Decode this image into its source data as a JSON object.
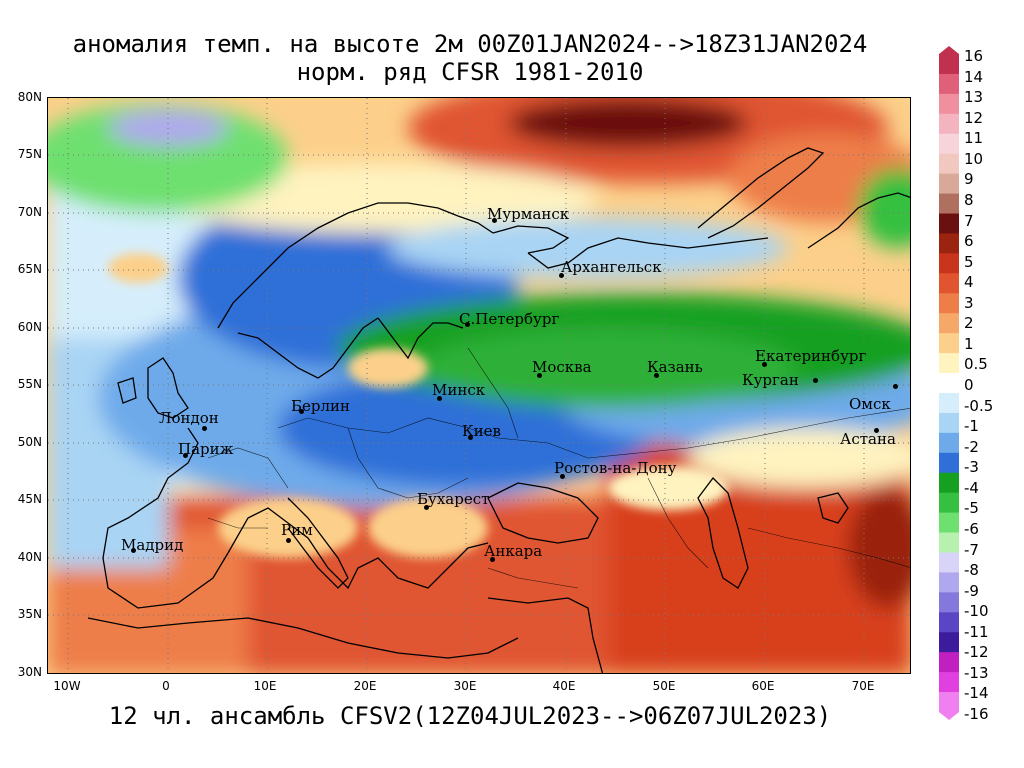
{
  "title_line1": "аномалия темп. на высоте 2м 00Z01JAN2024-->18Z31JAN2024",
  "title_line2": "норм. ряд CFSR 1981-2010",
  "footer": "12 чл. ансамбль CFSV2(12Z04JUL2023-->06Z07JUL2023)",
  "lat_labels": [
    "80N",
    "75N",
    "70N",
    "65N",
    "60N",
    "55N",
    "50N",
    "45N",
    "40N",
    "35N",
    "30N"
  ],
  "lon_labels": [
    "10W",
    "0",
    "10E",
    "20E",
    "30E",
    "40E",
    "50E",
    "60E",
    "70E"
  ],
  "cities": [
    {
      "name": "Мурманск"
    },
    {
      "name": "Архангельск"
    },
    {
      "name": "С.Петербург"
    },
    {
      "name": "Москва"
    },
    {
      "name": "Казань"
    },
    {
      "name": "Екатеринбург"
    },
    {
      "name": "Курган"
    },
    {
      "name": "Омск"
    },
    {
      "name": "Астана"
    },
    {
      "name": "Минск"
    },
    {
      "name": "Берлин"
    },
    {
      "name": "Лондон"
    },
    {
      "name": "Париж"
    },
    {
      "name": "Киев"
    },
    {
      "name": "Ростов-на-Дону"
    },
    {
      "name": "Бухарест"
    },
    {
      "name": "Рим"
    },
    {
      "name": "Мадрид"
    },
    {
      "name": "Анкара"
    }
  ],
  "colorbar": {
    "labels": [
      "16",
      "14",
      "13",
      "12",
      "11",
      "10",
      "9",
      "8",
      "7",
      "6",
      "5",
      "4",
      "3",
      "2",
      "1",
      "0.5",
      "0",
      "-0.5",
      "-1",
      "-2",
      "-3",
      "-4",
      "-5",
      "-6",
      "-7",
      "-8",
      "-9",
      "-10",
      "-11",
      "-12",
      "-13",
      "-14",
      "-16"
    ],
    "colors": [
      "#c0304f",
      "#e0607a",
      "#ef8fa0",
      "#f4b4bf",
      "#f7d4d9",
      "#f0c8c0",
      "#d8a898",
      "#b07060",
      "#6a1010",
      "#9a2410",
      "#c8341c",
      "#e05530",
      "#ee7e48",
      "#f6a868",
      "#fcd08a",
      "#fff3c0",
      "#ffffff",
      "#d6eefc",
      "#a9d4f4",
      "#6eaaea",
      "#2f6fd8",
      "#16a020",
      "#36c040",
      "#6ee070",
      "#b8f0b0",
      "#d8d4f8",
      "#b0a8ee",
      "#8478dc",
      "#5a46c4",
      "#3c1c9c",
      "#c020c0",
      "#e040e0",
      "#f080f0"
    ]
  },
  "chart_data": {
    "type": "heatmap",
    "variable": "аномалия темп. на высоте 2м",
    "period": "00Z01JAN2024-->18Z31JAN2024",
    "norm": "норм. ряд CFSR 1981-2010",
    "ensemble": "12 чл. ансамбль CFSV2(12Z04JUL2023-->06Z07JUL2023)",
    "x_range": [
      -12,
      75
    ],
    "y_range": [
      30,
      80
    ],
    "regions": [
      {
        "name": "Barents/Kara Sea north of Scandinavia",
        "anomaly_approx": 5
      },
      {
        "name": "Svalbard / Greenland Sea",
        "anomaly_approx": -1
      },
      {
        "name": "Scandinavia",
        "anomaly_approx": -3
      },
      {
        "name": "Central European Russia",
        "anomaly_approx": -4
      },
      {
        "name": "Western/Central Europe",
        "anomaly_approx": -2
      },
      {
        "name": "Mediterranean",
        "anomaly_approx": 1
      },
      {
        "name": "Turkey / Caucasus / Caspian",
        "anomaly_approx": 3
      },
      {
        "name": "Kazakhstan south",
        "anomaly_approx": 3
      }
    ]
  }
}
